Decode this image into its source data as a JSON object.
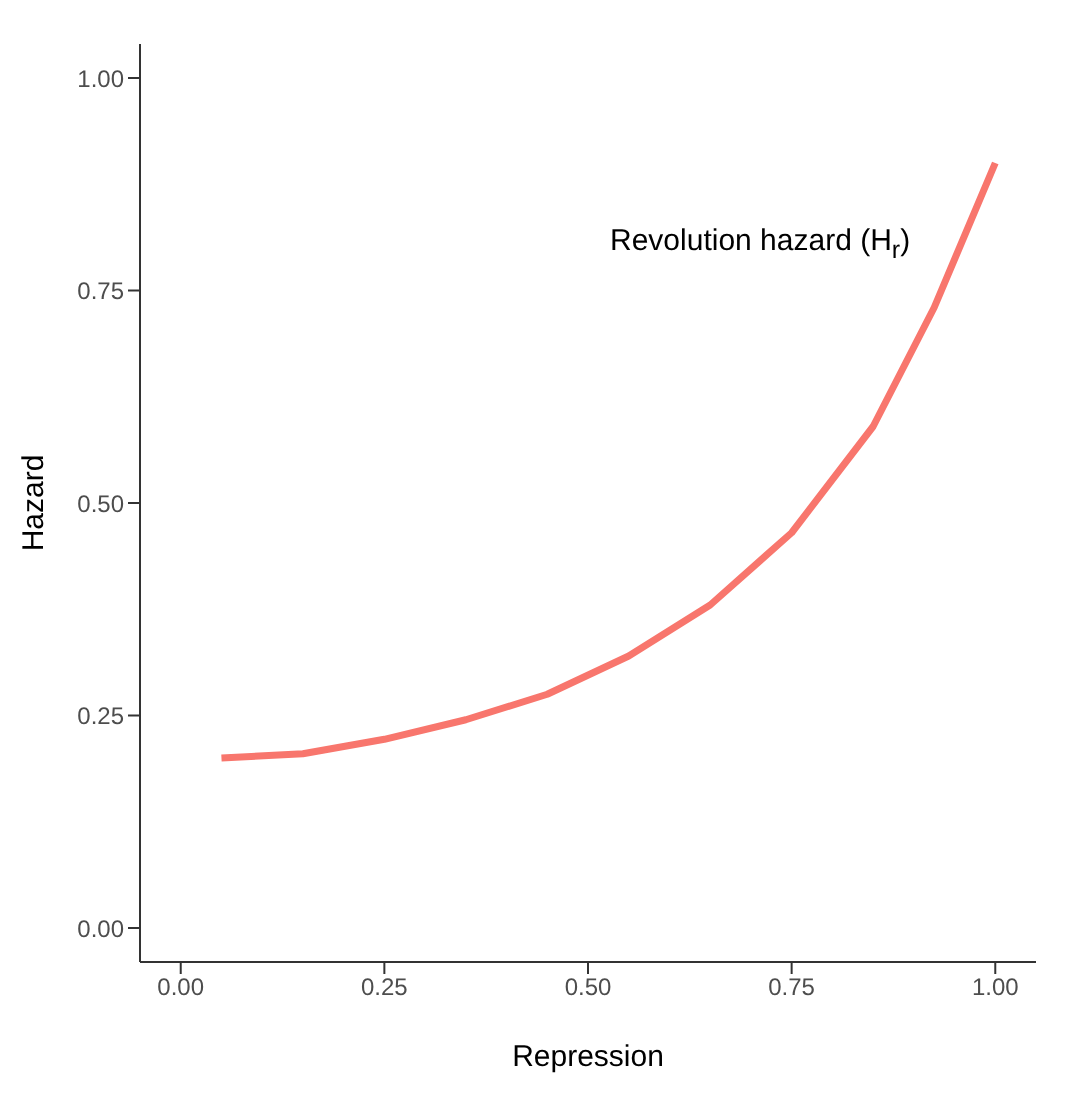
{
  "chart_data": {
    "type": "line",
    "xlabel": "Repression",
    "ylabel": "Hazard",
    "annotations": [
      "Revolution hazard (H$_{r}$)"
    ],
    "series": [
      {
        "color": "#f8766d",
        "x": [
          0.05,
          0.15,
          0.25,
          0.35,
          0.45,
          0.55,
          0.65,
          0.75,
          0.85,
          0.925,
          1.0
        ],
        "values": [
          0.2,
          0.205,
          0.222,
          0.245,
          0.275,
          0.32,
          0.38,
          0.465,
          0.59,
          0.73,
          0.9
        ]
      }
    ],
    "xlim": [
      -0.05,
      1.05
    ],
    "xticks": [
      {
        "value": 0,
        "label": "0.00"
      },
      {
        "value": 0.25,
        "label": "0.25"
      },
      {
        "value": 0.5,
        "label": "0.50"
      },
      {
        "value": 0.75,
        "label": "0.75"
      },
      {
        "value": 1,
        "label": "1.00"
      }
    ],
    "ylim": [
      -0.04,
      1.04
    ],
    "yticks": [
      {
        "value": 0,
        "label": "0.00"
      },
      {
        "value": 0.25,
        "label": "0.25"
      },
      {
        "value": 0.5,
        "label": "0.50"
      },
      {
        "value": 0.75,
        "label": "0.75"
      },
      {
        "value": 1,
        "label": "1.00"
      }
    ],
    "grid": false,
    "legend": false,
    "marker": "none",
    "line_style": "solid"
  }
}
